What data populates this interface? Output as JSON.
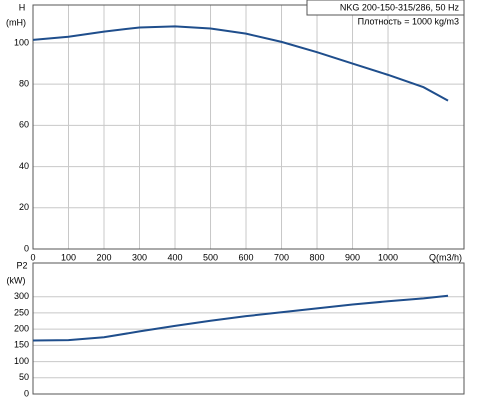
{
  "chart_data": [
    {
      "type": "line",
      "ylabel": "H",
      "yunit": "(mH)",
      "xlabel": "Q(m3/h)",
      "annotations": [
        "NKG 200-150-315/286, 50 Hz",
        "Плотность = 1000 kg/m3"
      ],
      "x": [
        0,
        100,
        200,
        300,
        400,
        500,
        600,
        700,
        800,
        900,
        1000,
        1100,
        1169
      ],
      "series": [
        {
          "color": "#1f4e8c",
          "values": [
            101.5,
            103,
            105.5,
            107.5,
            108,
            107,
            104.5,
            100.5,
            95.5,
            90,
            84.5,
            78.5,
            72
          ]
        }
      ],
      "xlim": [
        0,
        1214
      ],
      "ylim": [
        0,
        118.4
      ],
      "xticks": [
        0,
        100,
        200,
        300,
        400,
        500,
        600,
        700,
        800,
        900,
        1000
      ],
      "yticks": [
        0,
        20,
        40,
        60,
        80,
        100
      ],
      "grid": true
    },
    {
      "type": "line",
      "ylabel": "P2",
      "yunit": "(kW)",
      "x": [
        0,
        100,
        200,
        300,
        400,
        500,
        600,
        700,
        800,
        900,
        1000,
        1100,
        1169
      ],
      "series": [
        {
          "color": "#1f4e8c",
          "values": [
            165,
            166,
            175,
            193,
            210,
            226,
            240,
            252,
            264,
            276,
            286,
            295,
            303
          ]
        }
      ],
      "xlim": [
        0,
        1214
      ],
      "ylim": [
        0,
        404
      ],
      "yticks": [
        0,
        50,
        100,
        150,
        200,
        250,
        300
      ],
      "grid": true
    }
  ]
}
